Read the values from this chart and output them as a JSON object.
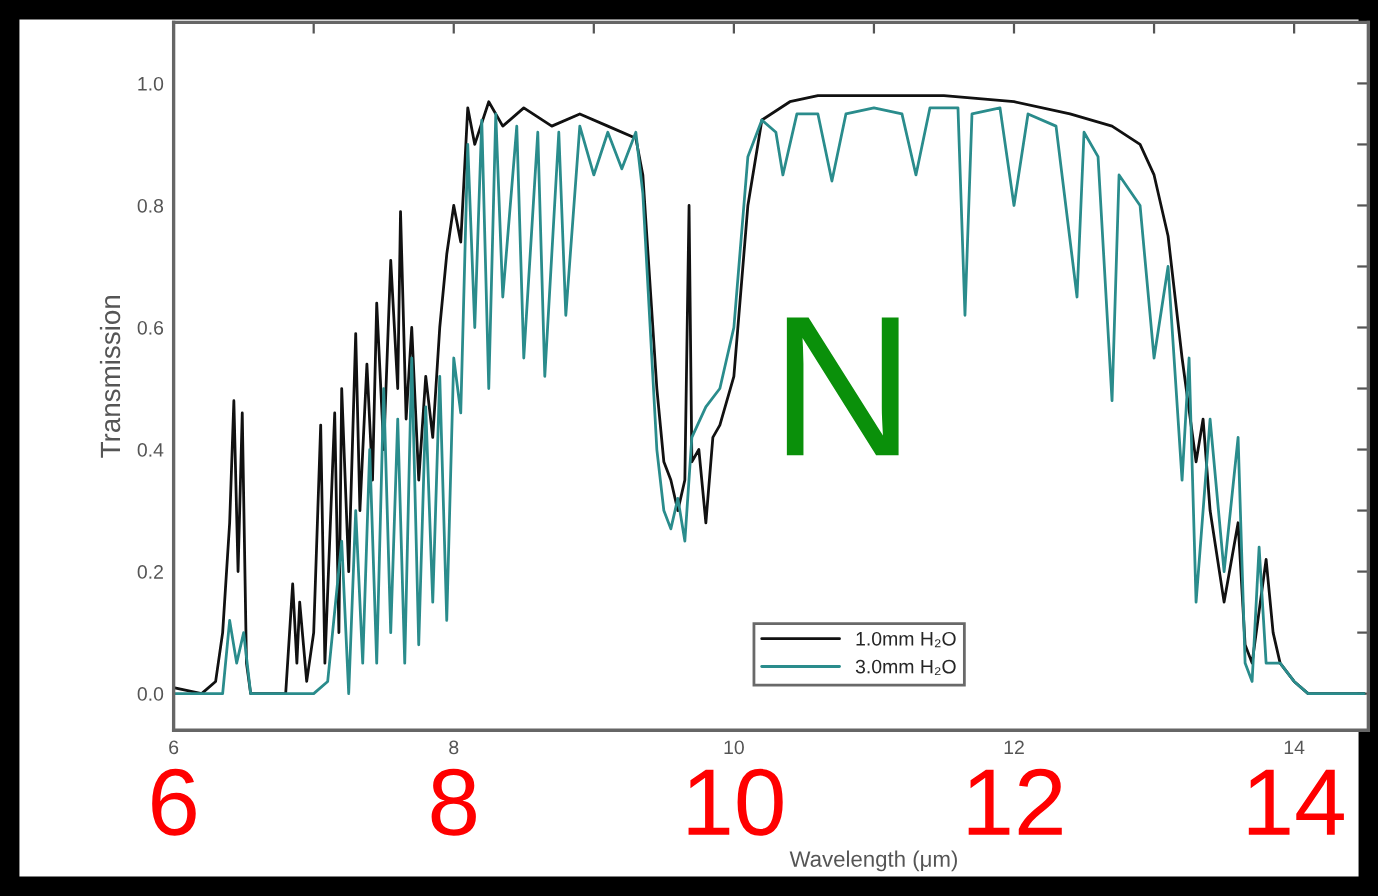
{
  "chart_data": {
    "type": "line",
    "xlabel": "Wavelength (μm)",
    "ylabel": "Transmission",
    "series": [
      {
        "name": "1.0mm H₂O",
        "color": "#111111",
        "x": [
          6.0,
          6.2,
          6.3,
          6.35,
          6.4,
          6.43,
          6.46,
          6.49,
          6.52,
          6.55,
          6.8,
          6.85,
          6.88,
          6.9,
          6.95,
          7.0,
          7.05,
          7.08,
          7.15,
          7.18,
          7.2,
          7.25,
          7.3,
          7.33,
          7.38,
          7.42,
          7.45,
          7.5,
          7.55,
          7.6,
          7.62,
          7.66,
          7.7,
          7.75,
          7.8,
          7.85,
          7.9,
          7.95,
          8.0,
          8.05,
          8.1,
          8.15,
          8.25,
          8.35,
          8.5,
          8.7,
          8.9,
          9.1,
          9.3,
          9.35,
          9.45,
          9.5,
          9.55,
          9.6,
          9.65,
          9.68,
          9.7,
          9.75,
          9.8,
          9.85,
          9.9,
          10.0,
          10.1,
          10.2,
          10.4,
          10.6,
          11.0,
          11.5,
          12.0,
          12.4,
          12.7,
          12.9,
          13.0,
          13.1,
          13.2,
          13.3,
          13.35,
          13.4,
          13.5,
          13.6,
          13.65,
          13.7,
          13.8,
          13.85,
          13.9,
          14.0,
          14.1,
          14.5
        ],
        "values": [
          0.01,
          0.0,
          0.02,
          0.1,
          0.28,
          0.48,
          0.2,
          0.46,
          0.05,
          0.0,
          0.0,
          0.18,
          0.05,
          0.15,
          0.02,
          0.1,
          0.44,
          0.05,
          0.46,
          0.1,
          0.5,
          0.2,
          0.59,
          0.3,
          0.54,
          0.35,
          0.64,
          0.4,
          0.71,
          0.5,
          0.79,
          0.45,
          0.6,
          0.35,
          0.52,
          0.42,
          0.6,
          0.72,
          0.8,
          0.74,
          0.96,
          0.9,
          0.97,
          0.93,
          0.96,
          0.93,
          0.95,
          0.93,
          0.91,
          0.85,
          0.5,
          0.38,
          0.35,
          0.3,
          0.35,
          0.8,
          0.38,
          0.4,
          0.28,
          0.42,
          0.44,
          0.52,
          0.8,
          0.94,
          0.97,
          0.98,
          0.98,
          0.98,
          0.97,
          0.95,
          0.93,
          0.9,
          0.85,
          0.75,
          0.55,
          0.38,
          0.45,
          0.3,
          0.15,
          0.28,
          0.08,
          0.05,
          0.22,
          0.1,
          0.05,
          0.02,
          0.0,
          0.0
        ]
      },
      {
        "name": "3.0mm H₂O",
        "color": "#2a8c8c",
        "x": [
          6.0,
          6.35,
          6.4,
          6.45,
          6.5,
          6.55,
          7.0,
          7.1,
          7.2,
          7.25,
          7.3,
          7.35,
          7.4,
          7.45,
          7.5,
          7.55,
          7.6,
          7.65,
          7.7,
          7.75,
          7.8,
          7.85,
          7.9,
          7.95,
          8.0,
          8.05,
          8.1,
          8.15,
          8.2,
          8.25,
          8.3,
          8.35,
          8.45,
          8.5,
          8.6,
          8.65,
          8.75,
          8.8,
          8.9,
          9.0,
          9.1,
          9.2,
          9.3,
          9.35,
          9.45,
          9.5,
          9.55,
          9.6,
          9.65,
          9.7,
          9.8,
          9.9,
          10.0,
          10.1,
          10.2,
          10.3,
          10.35,
          10.45,
          10.6,
          10.7,
          10.8,
          11.0,
          11.2,
          11.3,
          11.4,
          11.6,
          11.65,
          11.7,
          11.9,
          12.0,
          12.1,
          12.3,
          12.45,
          12.5,
          12.6,
          12.7,
          12.75,
          12.9,
          13.0,
          13.1,
          13.2,
          13.25,
          13.3,
          13.4,
          13.5,
          13.6,
          13.65,
          13.7,
          13.75,
          13.8,
          13.9,
          14.0,
          14.1,
          14.5
        ],
        "values": [
          0.0,
          0.0,
          0.12,
          0.05,
          0.1,
          0.0,
          0.0,
          0.02,
          0.25,
          0.0,
          0.3,
          0.05,
          0.4,
          0.05,
          0.5,
          0.1,
          0.45,
          0.05,
          0.55,
          0.08,
          0.47,
          0.15,
          0.52,
          0.12,
          0.55,
          0.46,
          0.9,
          0.6,
          0.94,
          0.5,
          0.95,
          0.65,
          0.93,
          0.55,
          0.92,
          0.52,
          0.92,
          0.62,
          0.93,
          0.85,
          0.92,
          0.86,
          0.92,
          0.82,
          0.4,
          0.3,
          0.27,
          0.32,
          0.25,
          0.42,
          0.47,
          0.5,
          0.6,
          0.88,
          0.94,
          0.92,
          0.85,
          0.95,
          0.95,
          0.84,
          0.95,
          0.96,
          0.95,
          0.85,
          0.96,
          0.96,
          0.62,
          0.95,
          0.96,
          0.8,
          0.95,
          0.93,
          0.65,
          0.92,
          0.88,
          0.48,
          0.85,
          0.8,
          0.55,
          0.7,
          0.35,
          0.55,
          0.15,
          0.45,
          0.2,
          0.42,
          0.05,
          0.02,
          0.24,
          0.05,
          0.05,
          0.02,
          0.0,
          0.0
        ]
      }
    ],
    "xlim": [
      6,
      14.53
    ],
    "ylim": [
      -0.06,
      1.1
    ],
    "xticks": [
      6,
      {
        "value": 7,
        "label": null
      },
      8,
      {
        "value": 9,
        "label": null
      },
      10,
      {
        "value": 11,
        "label": null
      },
      12,
      {
        "value": 13,
        "label": null
      },
      14
    ],
    "yticks": [
      {
        "value": 0.0,
        "label": "0.0"
      },
      {
        "value": 0.1,
        "label": null
      },
      {
        "value": 0.2,
        "label": "0.2"
      },
      {
        "value": 0.3,
        "label": null
      },
      {
        "value": 0.4,
        "label": "0.4"
      },
      {
        "value": 0.5,
        "label": null
      },
      {
        "value": 0.6,
        "label": "0.6"
      },
      {
        "value": 0.7,
        "label": null
      },
      {
        "value": 0.8,
        "label": "0.8"
      },
      {
        "value": 0.9,
        "label": null
      },
      {
        "value": 1.0,
        "label": "1.0"
      }
    ],
    "annotations": [
      "6",
      "8",
      "10",
      "12",
      "14",
      "N"
    ],
    "legend": "bottom right",
    "grid": false,
    "line_style": "solid",
    "marker": "none"
  }
}
